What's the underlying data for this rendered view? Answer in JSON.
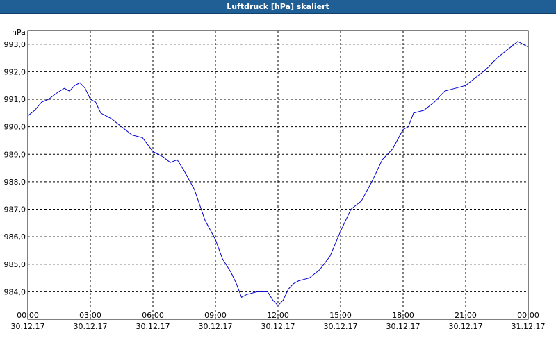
{
  "window": {
    "title": "Luftdruck [hPa] skaliert"
  },
  "colors": {
    "title_bar": "#1f5f96",
    "series": "#0000cc",
    "grid": "#000000",
    "background": "#ffffff"
  },
  "chart_data": {
    "type": "line",
    "title": "Luftdruck [hPa] skaliert",
    "ylabel": "hPa",
    "xlabel": "",
    "ylim": [
      983.0,
      993.5
    ],
    "xlim": [
      "30.12.17 00:00",
      "31.12.17 00:00"
    ],
    "grid": true,
    "legend": "none",
    "y_ticks": [
      {
        "value": 984.0,
        "label": "984,0"
      },
      {
        "value": 985.0,
        "label": "985,0"
      },
      {
        "value": 986.0,
        "label": "986,0"
      },
      {
        "value": 987.0,
        "label": "987,0"
      },
      {
        "value": 988.0,
        "label": "988,0"
      },
      {
        "value": 989.0,
        "label": "989,0"
      },
      {
        "value": 990.0,
        "label": "990,0"
      },
      {
        "value": 991.0,
        "label": "991,0"
      },
      {
        "value": 992.0,
        "label": "992,0"
      },
      {
        "value": 993.0,
        "label": "993,0"
      }
    ],
    "x_ticks": [
      {
        "value": "30.12.17 00:00",
        "time": "00:00",
        "date": "30.12.17"
      },
      {
        "value": "30.12.17 03:00",
        "time": "03:00",
        "date": "30.12.17"
      },
      {
        "value": "30.12.17 06:00",
        "time": "06:00",
        "date": "30.12.17"
      },
      {
        "value": "30.12.17 09:00",
        "time": "09:00",
        "date": "30.12.17"
      },
      {
        "value": "30.12.17 12:00",
        "time": "12:00",
        "date": "30.12.17"
      },
      {
        "value": "30.12.17 15:00",
        "time": "15:00",
        "date": "30.12.17"
      },
      {
        "value": "30.12.17 18:00",
        "time": "18:00",
        "date": "30.12.17"
      },
      {
        "value": "30.12.17 21:00",
        "time": "21:00",
        "date": "30.12.17"
      },
      {
        "value": "31.12.17 00:00",
        "time": "00:00",
        "date": "31.12.17"
      }
    ],
    "series": [
      {
        "points": [
          [
            "30.12.17 00:00",
            990.4
          ],
          [
            "30.12.17 00:20",
            990.6
          ],
          [
            "30.12.17 00:40",
            990.9
          ],
          [
            "30.12.17 01:00",
            991.0
          ],
          [
            "30.12.17 01:20",
            991.2
          ],
          [
            "30.12.17 01:45",
            991.4
          ],
          [
            "30.12.17 02:00",
            991.3
          ],
          [
            "30.12.17 02:15",
            991.5
          ],
          [
            "30.12.17 02:30",
            991.6
          ],
          [
            "30.12.17 02:45",
            991.4
          ],
          [
            "30.12.17 03:00",
            991.0
          ],
          [
            "30.12.17 03:15",
            990.9
          ],
          [
            "30.12.17 03:30",
            990.5
          ],
          [
            "30.12.17 04:00",
            990.3
          ],
          [
            "30.12.17 04:30",
            990.0
          ],
          [
            "30.12.17 05:00",
            989.7
          ],
          [
            "30.12.17 05:30",
            989.6
          ],
          [
            "30.12.17 06:00",
            989.1
          ],
          [
            "30.12.17 06:30",
            988.9
          ],
          [
            "30.12.17 06:50",
            988.7
          ],
          [
            "30.12.17 07:10",
            988.8
          ],
          [
            "30.12.17 07:30",
            988.4
          ],
          [
            "30.12.17 08:00",
            987.7
          ],
          [
            "30.12.17 08:30",
            986.6
          ],
          [
            "30.12.17 09:00",
            985.9
          ],
          [
            "30.12.17 09:20",
            985.2
          ],
          [
            "30.12.17 09:45",
            984.7
          ],
          [
            "30.12.17 10:00",
            984.3
          ],
          [
            "30.12.17 10:15",
            983.8
          ],
          [
            "30.12.17 10:30",
            983.9
          ],
          [
            "30.12.17 11:00",
            984.0
          ],
          [
            "30.12.17 11:30",
            984.0
          ],
          [
            "30.12.17 11:45",
            983.7
          ],
          [
            "30.12.17 12:00",
            983.5
          ],
          [
            "30.12.17 12:15",
            983.7
          ],
          [
            "30.12.17 12:30",
            984.1
          ],
          [
            "30.12.17 12:45",
            984.3
          ],
          [
            "30.12.17 13:00",
            984.4
          ],
          [
            "30.12.17 13:30",
            984.5
          ],
          [
            "30.12.17 14:00",
            984.8
          ],
          [
            "30.12.17 14:30",
            985.3
          ],
          [
            "30.12.17 15:00",
            986.2
          ],
          [
            "30.12.17 15:30",
            987.0
          ],
          [
            "30.12.17 16:00",
            987.3
          ],
          [
            "30.12.17 16:30",
            988.0
          ],
          [
            "30.12.17 17:00",
            988.8
          ],
          [
            "30.12.17 17:30",
            989.2
          ],
          [
            "30.12.17 18:00",
            989.9
          ],
          [
            "30.12.17 18:15",
            990.0
          ],
          [
            "30.12.17 18:30",
            990.5
          ],
          [
            "30.12.17 19:00",
            990.6
          ],
          [
            "30.12.17 19:30",
            990.9
          ],
          [
            "30.12.17 20:00",
            991.3
          ],
          [
            "30.12.17 20:30",
            991.4
          ],
          [
            "30.12.17 21:00",
            991.5
          ],
          [
            "30.12.17 21:30",
            991.8
          ],
          [
            "30.12.17 22:00",
            992.1
          ],
          [
            "30.12.17 22:30",
            992.5
          ],
          [
            "30.12.17 23:00",
            992.8
          ],
          [
            "30.12.17 23:30",
            993.1
          ],
          [
            "31.12.17 00:00",
            992.9
          ]
        ]
      }
    ]
  }
}
